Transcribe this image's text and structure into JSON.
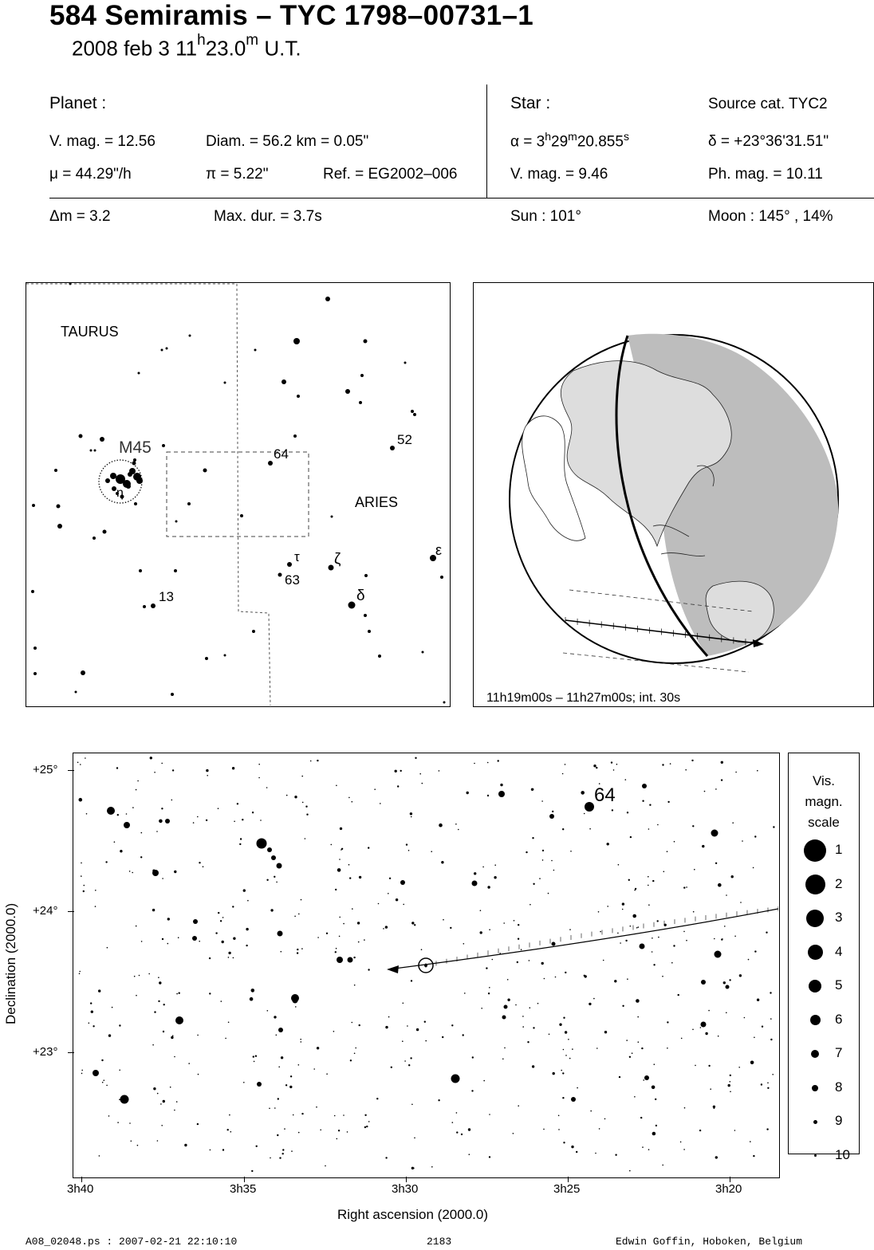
{
  "header": {
    "title": "584 Semiramis  –  TYC 1798–00731–1",
    "date": "2008 feb  3  11",
    "time_h": "h",
    "time_min": "23.0",
    "time_m": "m",
    "time_ut": " U.T."
  },
  "planet": {
    "label": "Planet :",
    "vmag": "V. mag. = 12.56",
    "diam": "Diam. = 56.2 km = 0.05\"",
    "mu": "μ =  44.29\"/h",
    "pi": "π =  5.22\"",
    "ref": "Ref. = EG2002–006"
  },
  "star": {
    "label": "Star :",
    "source": "Source cat.  TYC2",
    "alpha_prefix": "α =  3",
    "alpha_h": "h",
    "alpha_min": "29",
    "alpha_m": "m",
    "alpha_sec": "20.855",
    "alpha_s": "s",
    "delta": "δ = +23°36'31.51\"",
    "vmag": "V. mag. =  9.46",
    "phmag": "Ph. mag. = 10.11"
  },
  "summary": {
    "dm": "Δm = 3.2",
    "maxdur": "Max. dur. = 3.7s",
    "sun": "Sun : 101°",
    "moon": "Moon : 145° , 14%"
  },
  "finder": {
    "labels": {
      "taurus": "TAURUS",
      "aries": "ARIES",
      "m45": "M45",
      "eta": "η",
      "n64": "64",
      "n52": "52",
      "tau": "τ",
      "n63": "63",
      "zeta": "ζ",
      "delta": "δ",
      "eps": "ε",
      "n13": "13"
    }
  },
  "globe": {
    "caption": "11h19m00s – 11h27m00s; int. 30s"
  },
  "detail": {
    "y_axis_label": "Declination (2000.0)",
    "x_axis_label": "Right ascension (2000.0)",
    "y_ticks": [
      "+25°",
      "+24°",
      "+23°"
    ],
    "x_ticks": [
      "3h40",
      "3h35",
      "3h30",
      "3h25",
      "3h20"
    ],
    "star_label_64": "64"
  },
  "scale": {
    "title_lines": [
      "Vis.",
      "magn.",
      "scale"
    ],
    "levels": [
      "1",
      "2",
      "3",
      "4",
      "5",
      "6",
      "7",
      "8",
      "9",
      "10"
    ]
  },
  "footer": {
    "file": "A08_02048.ps : 2007-02-21 22:10:10",
    "number": "2183",
    "author": "Edwin Goffin, Hoboken, Belgium"
  }
}
